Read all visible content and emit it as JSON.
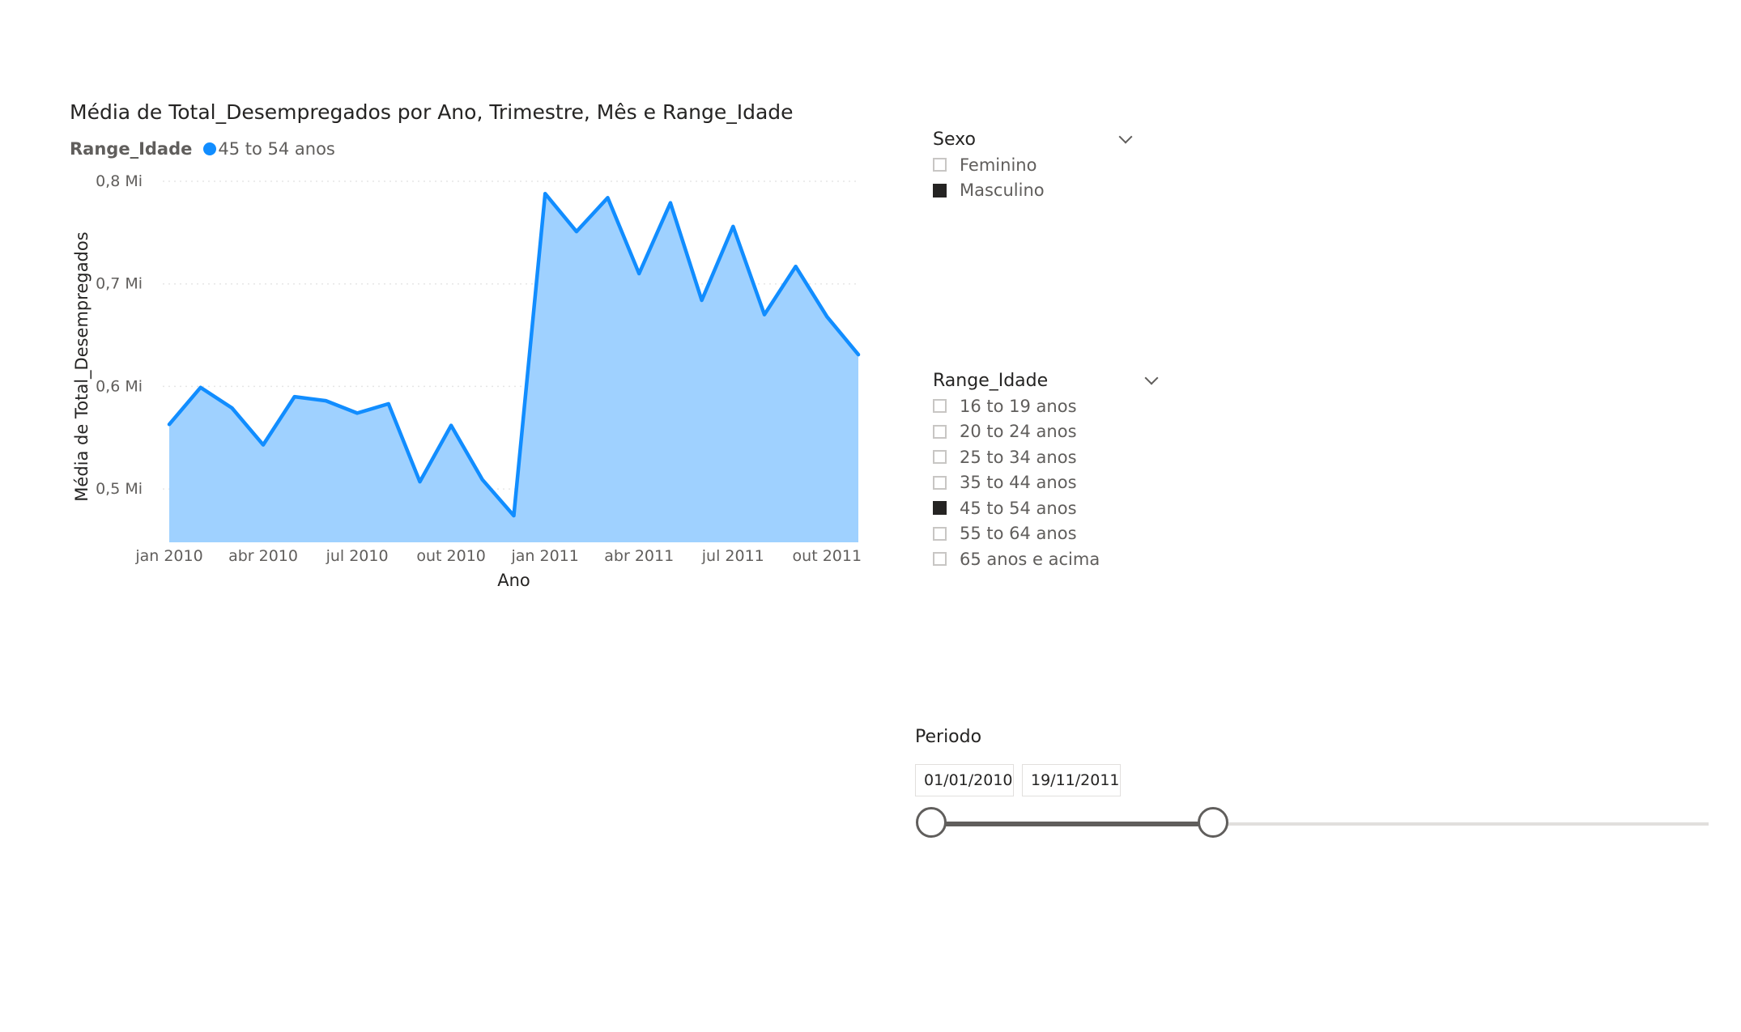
{
  "chart": {
    "title": "Média de Total_Desempregados por Ano, Trimestre, Mês e Range_Idade",
    "legend_title": "Range_Idade",
    "legend_item": "45 to 54 anos",
    "line_color": "#118dff",
    "fill_color": "#9fd1ff"
  },
  "chart_data": {
    "type": "area",
    "title": "Média de Total_Desempregados por Ano, Trimestre, Mês e Range_Idade",
    "xlabel": "Ano",
    "ylabel": "Média de Total_Desempregados",
    "x_tick_labels": [
      "jan 2010",
      "abr 2010",
      "jul 2010",
      "out 2010",
      "jan 2011",
      "abr 2011",
      "jul 2011",
      "out 2011"
    ],
    "y_tick_labels": [
      "0,5 Mi",
      "0,6 Mi",
      "0,7 Mi",
      "0,8 Mi"
    ],
    "y_tick_values": [
      0.5,
      0.6,
      0.7,
      0.8
    ],
    "ylim": [
      0.448,
      0.8
    ],
    "grid": true,
    "series": [
      {
        "name": "45 to 54 anos",
        "x": [
          "jan 2010",
          "fev 2010",
          "mar 2010",
          "abr 2010",
          "mai 2010",
          "jun 2010",
          "jul 2010",
          "ago 2010",
          "set 2010",
          "out 2010",
          "nov 2010",
          "dez 2010",
          "jan 2011",
          "fev 2011",
          "mar 2011",
          "abr 2011",
          "mai 2011",
          "jun 2011",
          "jul 2011",
          "ago 2011",
          "set 2011",
          "out 2011",
          "nov 2011"
        ],
        "values": [
          0.563,
          0.599,
          0.579,
          0.543,
          0.59,
          0.586,
          0.574,
          0.583,
          0.507,
          0.562,
          0.509,
          0.474,
          0.788,
          0.751,
          0.784,
          0.71,
          0.779,
          0.684,
          0.756,
          0.67,
          0.717,
          0.668,
          0.631
        ]
      }
    ]
  },
  "slicer_sexo": {
    "title": "Sexo",
    "items": [
      {
        "label": "Feminino",
        "checked": false
      },
      {
        "label": "Masculino",
        "checked": true
      }
    ]
  },
  "slicer_idade": {
    "title": "Range_Idade",
    "items": [
      {
        "label": "16 to 19 anos",
        "checked": false
      },
      {
        "label": "20 to 24 anos",
        "checked": false
      },
      {
        "label": "25 to 34 anos",
        "checked": false
      },
      {
        "label": "35 to 44 anos",
        "checked": false
      },
      {
        "label": "45 to 54 anos",
        "checked": true
      },
      {
        "label": "55 to 64 anos",
        "checked": false
      },
      {
        "label": "65 anos e acima",
        "checked": false
      }
    ]
  },
  "period": {
    "title": "Periodo",
    "start": "01/01/2010",
    "end": "19/11/2011",
    "range_start_fraction": 0.0,
    "range_end_fraction": 0.3625
  }
}
